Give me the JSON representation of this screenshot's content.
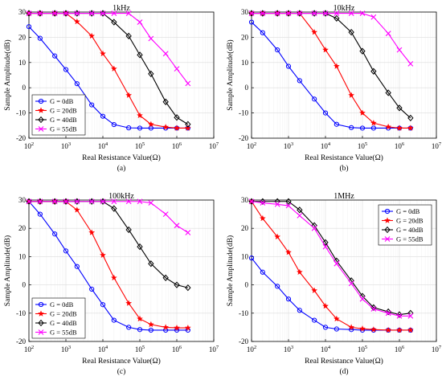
{
  "chart_data": [
    {
      "type": "line",
      "title": "1kHz",
      "caption": "(a)",
      "xlabel": "Real Resistance Value(Ω)",
      "ylabel": "Sample Amplitude(dB)",
      "xscale": "log",
      "xlim": [
        100,
        10000000
      ],
      "ylim": [
        -20,
        30
      ],
      "grid": true,
      "legend": "bottom-left",
      "x": [
        100,
        200,
        500,
        1000,
        2000,
        5000,
        10000,
        20000,
        50000,
        100000,
        200000,
        500000,
        1000000,
        2000000
      ],
      "series": [
        {
          "name": "G = 0dB",
          "color": "#0000ff",
          "marker": "circle",
          "values": [
            24.2,
            19.6,
            12.6,
            7.2,
            1.6,
            -6.8,
            -11.3,
            -14.6,
            -15.9,
            -16.0,
            -16.0,
            -16.0,
            -16.0,
            -16.0
          ]
        },
        {
          "name": "G = 20dB",
          "color": "#ff0000",
          "marker": "star",
          "values": [
            29.5,
            29.5,
            29.5,
            29.5,
            26.2,
            20.5,
            13.5,
            7.5,
            -3.0,
            -11.0,
            -14.5,
            -15.6,
            -16.0,
            -16.0
          ]
        },
        {
          "name": "G = 40dB",
          "color": "#000000",
          "marker": "diamond",
          "values": [
            29.5,
            29.5,
            29.5,
            29.5,
            29.5,
            29.5,
            29.5,
            26.0,
            20.5,
            13.0,
            5.5,
            -5.6,
            -11.8,
            -14.5
          ]
        },
        {
          "name": "G = 55dB",
          "color": "#ff00ff",
          "marker": "x",
          "values": [
            29.5,
            29.5,
            29.5,
            29.5,
            29.5,
            29.5,
            29.5,
            29.5,
            29.5,
            26.0,
            19.5,
            13.5,
            7.5,
            1.7
          ]
        }
      ]
    },
    {
      "type": "line",
      "title": "10kHz",
      "caption": "(b)",
      "xlabel": "Real Resistance Value(Ω)",
      "ylabel": "Sample Amplitude(dB)",
      "xscale": "log",
      "xlim": [
        100,
        10000000
      ],
      "ylim": [
        -20,
        30
      ],
      "grid": true,
      "legend": "none",
      "x": [
        100,
        200,
        500,
        1000,
        2000,
        5000,
        10000,
        20000,
        50000,
        100000,
        200000,
        500000,
        1000000,
        2000000
      ],
      "series": [
        {
          "name": "G = 0dB",
          "color": "#0000ff",
          "marker": "circle",
          "values": [
            26.0,
            21.8,
            15.0,
            8.5,
            2.8,
            -4.5,
            -10.0,
            -14.5,
            -15.8,
            -16.0,
            -16.0,
            -16.0,
            -16.0,
            -16.0
          ]
        },
        {
          "name": "G = 20dB",
          "color": "#ff0000",
          "marker": "star",
          "values": [
            29.5,
            29.5,
            29.5,
            29.5,
            29.5,
            22.0,
            15.0,
            8.5,
            -3.0,
            -10.0,
            -14.0,
            -15.5,
            -16.0,
            -16.0
          ]
        },
        {
          "name": "G = 40dB",
          "color": "#000000",
          "marker": "diamond",
          "values": [
            29.5,
            29.5,
            29.5,
            29.5,
            29.5,
            29.5,
            29.5,
            27.5,
            22.0,
            14.5,
            6.5,
            -2.0,
            -8.0,
            -12.0
          ]
        },
        {
          "name": "G = 55dB",
          "color": "#ff00ff",
          "marker": "x",
          "values": [
            29.5,
            29.5,
            29.5,
            29.5,
            29.5,
            29.5,
            29.5,
            29.5,
            29.5,
            29.5,
            28.0,
            21.5,
            15.0,
            9.5
          ]
        }
      ]
    },
    {
      "type": "line",
      "title": "100kHz",
      "caption": "(c)",
      "xlabel": "Real Resistance Value(Ω)",
      "ylabel": "Sample Amplitude(dB)",
      "xscale": "log",
      "xlim": [
        100,
        10000000
      ],
      "ylim": [
        -20,
        30
      ],
      "grid": true,
      "legend": "bottom-left",
      "x": [
        100,
        200,
        500,
        1000,
        2000,
        5000,
        10000,
        20000,
        50000,
        100000,
        200000,
        500000,
        1000000,
        2000000
      ],
      "series": [
        {
          "name": "G = 0dB",
          "color": "#0000ff",
          "marker": "circle",
          "values": [
            29.5,
            25.0,
            18.0,
            12.0,
            6.5,
            -1.5,
            -7.0,
            -12.5,
            -15.0,
            -15.8,
            -16.0,
            -16.0,
            -16.0,
            -16.0
          ]
        },
        {
          "name": "G = 20dB",
          "color": "#ff0000",
          "marker": "star",
          "values": [
            29.5,
            29.5,
            29.5,
            29.5,
            26.5,
            18.5,
            10.5,
            2.5,
            -6.5,
            -12.0,
            -14.0,
            -15.0,
            -15.2,
            -15.2
          ]
        },
        {
          "name": "G = 40dB",
          "color": "#000000",
          "marker": "diamond",
          "values": [
            29.5,
            29.5,
            29.5,
            29.5,
            29.5,
            29.5,
            29.5,
            27.0,
            19.5,
            13.5,
            7.5,
            2.5,
            0.0,
            -1.0
          ]
        },
        {
          "name": "G = 55dB",
          "color": "#ff00ff",
          "marker": "x",
          "values": [
            29.5,
            29.5,
            29.5,
            29.5,
            29.5,
            29.5,
            29.5,
            29.5,
            29.5,
            29.5,
            29.0,
            25.0,
            21.0,
            18.5
          ]
        }
      ]
    },
    {
      "type": "line",
      "title": "1MHz",
      "caption": "(d)",
      "xlabel": "Real Resistance Value(Ω)",
      "ylabel": "Sample Amplitude(dB)",
      "xscale": "log",
      "xlim": [
        100,
        10000000
      ],
      "ylim": [
        -20,
        30
      ],
      "grid": true,
      "legend": "top-right",
      "x": [
        100,
        200,
        500,
        1000,
        2000,
        5000,
        10000,
        20000,
        50000,
        100000,
        200000,
        500000,
        1000000,
        2000000
      ],
      "series": [
        {
          "name": "G = 0dB",
          "color": "#0000ff",
          "marker": "circle",
          "values": [
            9.5,
            4.5,
            -0.5,
            -5.0,
            -9.0,
            -12.5,
            -15.0,
            -15.6,
            -15.8,
            -16.0,
            -16.0,
            -16.0,
            -16.0,
            -16.0
          ]
        },
        {
          "name": "G = 20dB",
          "color": "#ff0000",
          "marker": "star",
          "values": [
            29.5,
            23.5,
            17.0,
            11.5,
            4.5,
            -2.0,
            -7.5,
            -12.0,
            -15.0,
            -15.5,
            -15.8,
            -16.0,
            -16.0,
            -16.0
          ]
        },
        {
          "name": "G = 40dB",
          "color": "#000000",
          "marker": "diamond",
          "values": [
            29.5,
            29.5,
            29.5,
            29.5,
            26.5,
            21.0,
            15.0,
            8.5,
            1.5,
            -4.0,
            -8.0,
            -9.5,
            -10.5,
            -10.0
          ]
        },
        {
          "name": "G = 55dB",
          "color": "#ff00ff",
          "marker": "x",
          "values": [
            29.5,
            29.0,
            28.5,
            28.0,
            24.5,
            20.0,
            13.5,
            7.5,
            0.5,
            -5.0,
            -8.5,
            -10.0,
            -11.0,
            -11.0
          ]
        }
      ]
    }
  ]
}
